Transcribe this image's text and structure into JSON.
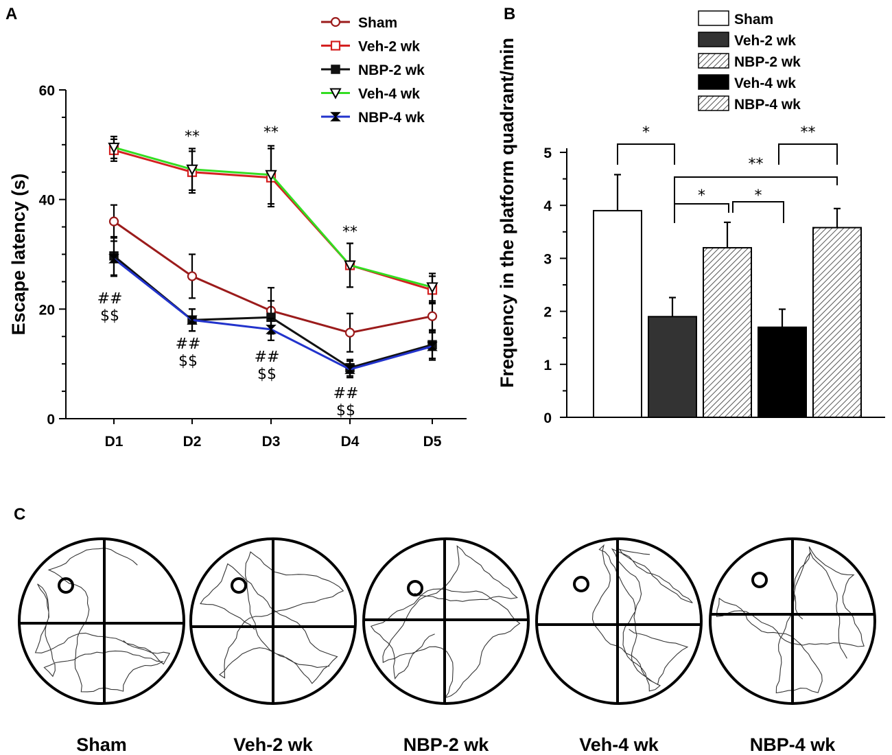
{
  "chart_data": [
    {
      "panel": "A",
      "type": "line",
      "title": "",
      "xlabel": "",
      "ylabel": "Escape latency (s)",
      "categories": [
        "D1",
        "D2",
        "D3",
        "D4",
        "D5"
      ],
      "ylim": [
        0,
        60
      ],
      "yticks": [
        0,
        20,
        40,
        60
      ],
      "series": [
        {
          "name": "Sham",
          "color": "#9b1b1b",
          "marker": "circle-open",
          "values": [
            36,
            26,
            19.7,
            15.7,
            18.7
          ],
          "errors": [
            3.0,
            4.0,
            4.2,
            3.5,
            2.5
          ]
        },
        {
          "name": "Veh-2 wk",
          "color": "#d42020",
          "marker": "square-open",
          "values": [
            49,
            45,
            44,
            28,
            23.5
          ],
          "errors": [
            2.0,
            3.8,
            5.3,
            4.0,
            2.5
          ]
        },
        {
          "name": "NBP-2 wk",
          "color": "#111111",
          "marker": "square-filled",
          "values": [
            29.7,
            18,
            18.5,
            9.3,
            13.5
          ],
          "errors": [
            3.5,
            2.0,
            3.0,
            1.5,
            2.5
          ]
        },
        {
          "name": "Veh-4 wk",
          "color": "#33dd22",
          "marker": "triangle-down-open",
          "values": [
            49.5,
            45.5,
            44.5,
            28,
            24
          ],
          "errors": [
            2.0,
            3.8,
            5.3,
            4.0,
            2.5
          ]
        },
        {
          "name": "NBP-4 wk",
          "color": "#2233cc",
          "marker": "hourglass",
          "values": [
            29.2,
            18,
            16.3,
            9,
            13.2
          ],
          "errors": [
            3.2,
            2.0,
            2.0,
            1.5,
            2.5
          ]
        }
      ],
      "annotations": [
        {
          "category": "D1",
          "text_lines": [
            "##",
            "$$"
          ]
        },
        {
          "category": "D2",
          "text_lines": [
            "**"
          ]
        },
        {
          "category": "D2",
          "text_lines": [
            "##",
            "$$"
          ]
        },
        {
          "category": "D3",
          "text_lines": [
            "**"
          ]
        },
        {
          "category": "D3",
          "text_lines": [
            "##",
            "$$"
          ]
        },
        {
          "category": "D4",
          "text_lines": [
            "**"
          ]
        },
        {
          "category": "D4",
          "text_lines": [
            "##",
            "$$"
          ]
        }
      ]
    },
    {
      "panel": "B",
      "type": "bar",
      "title": "",
      "xlabel": "",
      "ylabel": "Frequency in the platform quadrant/min",
      "categories": [
        "Sham",
        "Veh-2 wk",
        "NBP-2 wk",
        "Veh-4 wk",
        "NBP-4 wk"
      ],
      "values": [
        3.9,
        1.9,
        3.2,
        1.7,
        3.58
      ],
      "errors": [
        0.68,
        0.36,
        0.48,
        0.34,
        0.36
      ],
      "fills": [
        "white",
        "#333333",
        "hatch",
        "#000000",
        "hatch"
      ],
      "ylim": [
        0,
        5
      ],
      "yticks": [
        0,
        1,
        2,
        3,
        4,
        5
      ],
      "significance": [
        {
          "from": "Sham",
          "to": "Veh-2 wk",
          "text": "*"
        },
        {
          "from": "Veh-2 wk",
          "to": "NBP-2 wk",
          "text": "*"
        },
        {
          "from": "NBP-2 wk",
          "to": "Veh-4 wk",
          "text": "*"
        },
        {
          "from": "Veh-2 wk",
          "to": "NBP-4 wk",
          "text": "**"
        },
        {
          "from": "Veh-4 wk",
          "to": "NBP-4 wk",
          "text": "**"
        }
      ]
    }
  ],
  "panel_c": {
    "letter": "C",
    "mazes": [
      {
        "label": "Sham"
      },
      {
        "label": "Veh-2 wk"
      },
      {
        "label": "NBP-2 wk"
      },
      {
        "label": "Veh-4 wk"
      },
      {
        "label": "NBP-4 wk"
      }
    ]
  }
}
